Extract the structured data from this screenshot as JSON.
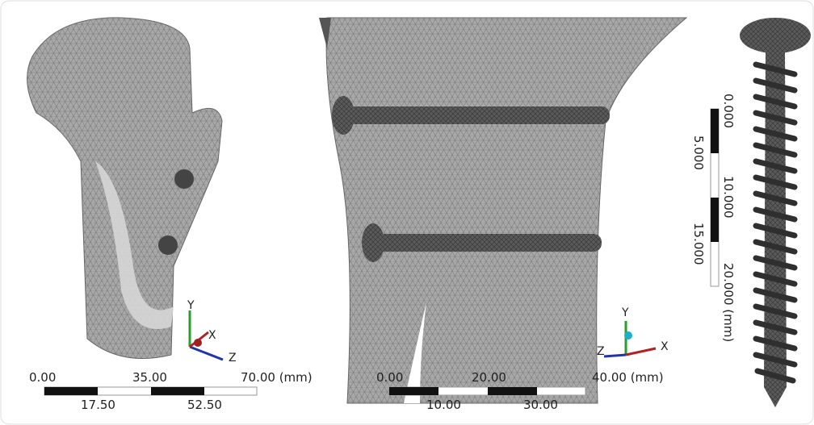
{
  "panels": [
    {
      "scale": {
        "top": [
          "0.00",
          "35.00",
          "70.00 (mm)"
        ],
        "bottom": [
          "17.50",
          "52.50"
        ]
      },
      "triad": {
        "y": "Y",
        "x": "X",
        "z": "Z"
      }
    },
    {
      "scale": {
        "top": [
          "0.00",
          "20.00",
          "40.00 (mm)"
        ],
        "bottom": [
          "10.00",
          "30.00"
        ]
      },
      "triad": {
        "y": "Y",
        "x": "X",
        "z": "Z"
      }
    },
    {
      "scale": {
        "top": [
          "0.000",
          "10.000",
          "20.000 (mm)"
        ],
        "bottom": [
          "5.000",
          "15.000"
        ]
      }
    }
  ]
}
